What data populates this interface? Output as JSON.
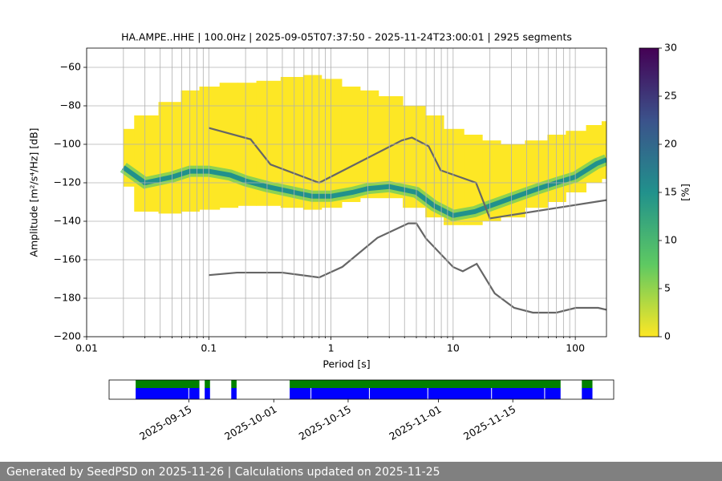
{
  "chart_data": {
    "type": "ppsd",
    "title": "HA.AMPE..HHE | 100.0Hz | 2025-09-05T07:37:50 - 2025-11-24T23:00:01 | 2925 segments",
    "x_label": "Period [s]",
    "y_label": "Amplitude [m²/s⁴/Hz] [dB]",
    "log_x": true,
    "grid": true,
    "xlim": [
      0.01,
      180
    ],
    "xticks": [
      0.01,
      0.1,
      1,
      10,
      100
    ],
    "xminorticks": [
      0.02,
      0.03,
      0.04,
      0.05,
      0.06,
      0.07,
      0.08,
      0.09,
      0.2,
      0.3,
      0.4,
      0.5,
      0.6,
      0.7,
      0.8,
      0.9,
      2,
      3,
      4,
      5,
      6,
      7,
      8,
      9,
      20,
      30,
      40,
      50,
      60,
      70,
      80,
      90
    ],
    "ylim": [
      -200,
      -50
    ],
    "yticks": [
      {
        "value": -200,
        "label": "−200"
      },
      {
        "value": -180,
        "label": "−180"
      },
      {
        "value": -160,
        "label": "−160"
      },
      {
        "value": -140,
        "label": "−140"
      },
      {
        "value": -120,
        "label": "−120"
      },
      {
        "value": -100,
        "label": "−100"
      },
      {
        "value": -80,
        "label": "−80"
      },
      {
        "value": -60,
        "label": "−60"
      }
    ],
    "psd": {
      "periods": [
        0.02,
        0.03,
        0.05,
        0.07,
        0.1,
        0.15,
        0.2,
        0.3,
        0.5,
        0.7,
        1,
        1.5,
        2,
        3,
        5,
        7,
        10,
        15,
        20,
        30,
        50,
        70,
        100,
        150,
        180
      ],
      "high": [
        -92,
        -85,
        -78,
        -72,
        -70,
        -68,
        -68,
        -67,
        -65,
        -64,
        -66,
        -70,
        -72,
        -75,
        -80,
        -85,
        -92,
        -95,
        -98,
        -100,
        -98,
        -95,
        -93,
        -90,
        -88
      ],
      "low": [
        -122,
        -135,
        -136,
        -135,
        -134,
        -133,
        -132,
        -132,
        -133,
        -134,
        -133,
        -130,
        -128,
        -128,
        -133,
        -138,
        -142,
        -142,
        -140,
        -138,
        -133,
        -130,
        -125,
        -120,
        -118
      ],
      "mode": [
        -112,
        -120,
        -117,
        -114,
        -114,
        -116,
        -119,
        -122,
        -125,
        -127,
        -127,
        -125,
        -123,
        -122,
        -125,
        -132,
        -137,
        -135,
        -132,
        -128,
        -123,
        -120,
        -117,
        -110,
        -108
      ],
      "color": "#fde725",
      "mode_color": "#21918c"
    },
    "noise_models": [
      {
        "color": "#666666",
        "x": [
          0.1,
          0.22,
          0.32,
          0.8,
          3.8,
          4.6,
          6.3,
          7.9,
          15.4,
          20,
          180
        ],
        "values": [
          -91.5,
          -97.4,
          -110.5,
          -120,
          -98,
          -96.5,
          -101,
          -113.5,
          -120,
          -138.5,
          -129
        ]
      },
      {
        "color": "#666666",
        "x": [
          0.1,
          0.17,
          0.4,
          0.8,
          1.24,
          2.4,
          4.3,
          5,
          6,
          10,
          12,
          15.6,
          21.9,
          31.6,
          45,
          70,
          101,
          154,
          180
        ],
        "values": [
          -168,
          -166.7,
          -166.7,
          -169.2,
          -163.7,
          -148.6,
          -141.1,
          -141.1,
          -149,
          -163.8,
          -166,
          -162.1,
          -177.5,
          -185,
          -187.5,
          -187.5,
          -185,
          -185,
          -186
        ]
      }
    ],
    "colorbar": {
      "label": "[%]",
      "lim": [
        0,
        30
      ],
      "ticks": [
        0,
        5,
        10,
        15,
        20,
        25,
        30
      ],
      "colors": [
        "#fde725",
        "#5ec962",
        "#21918c",
        "#3b528b",
        "#440154"
      ]
    },
    "availability": {
      "xlim": [
        "2025-08-31",
        "2025-12-04"
      ],
      "xticks": [
        "2025-09-15",
        "2025-10-01",
        "2025-10-15",
        "2025-11-01",
        "2025-11-15"
      ],
      "spans": [
        [
          "2025-09-05",
          "2025-09-17"
        ],
        [
          "2025-09-18",
          "2025-09-19"
        ],
        [
          "2025-09-23",
          "2025-09-24"
        ],
        [
          "2025-10-04",
          "2025-11-24"
        ],
        [
          "2025-11-28",
          "2025-11-30"
        ]
      ],
      "gaps": [
        "2025-09-15",
        "2025-10-08",
        "2025-10-19",
        "2025-10-30",
        "2025-11-11",
        "2025-11-21"
      ],
      "data_color": "#008000",
      "used_color": "#0000ff"
    }
  },
  "footer": "Generated by SeedPSD on 2025-11-26 | Calculations updated on 2025-11-25"
}
